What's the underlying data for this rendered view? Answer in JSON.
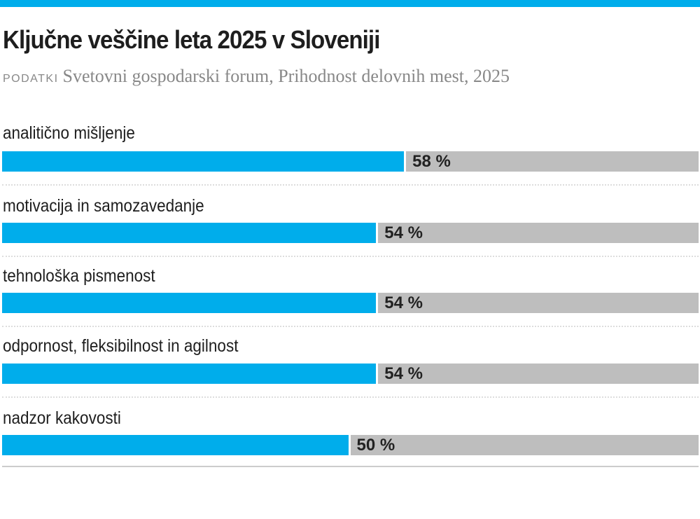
{
  "colors": {
    "accent": "#00adeb",
    "track": "#bebebe"
  },
  "header": {
    "title": "Ključne veščine leta 2025 v Sloveniji",
    "source_label": "PODATKI",
    "source_text": "Svetovni gospodarski forum, Prihodnost delovnih mest, 2025"
  },
  "chart_data": {
    "type": "bar",
    "orientation": "horizontal",
    "categories": [
      "analitično mišljenje",
      "motivacija in samozavedanje",
      "tehnološka pismenost",
      "odpornost, fleksibilnost in agilnost",
      "nadzor kakovosti"
    ],
    "values": [
      58,
      54,
      54,
      54,
      50
    ],
    "value_labels": [
      "58 %",
      "54 %",
      "54 %",
      "54 %",
      "50 %"
    ],
    "xlim": [
      0,
      100
    ],
    "unit": "%"
  }
}
